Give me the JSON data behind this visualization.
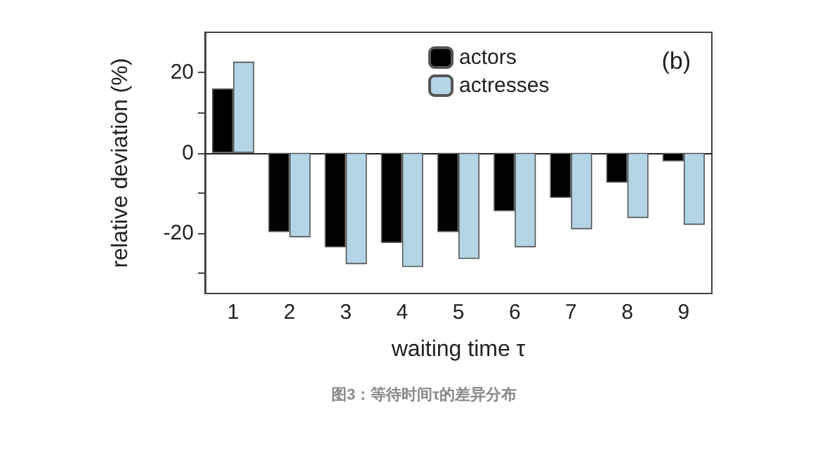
{
  "chart_data": {
    "type": "bar",
    "xlabel": "waiting time τ",
    "ylabel": "relative deviation (%)",
    "categories": [
      "1",
      "2",
      "3",
      "4",
      "5",
      "6",
      "7",
      "8",
      "9"
    ],
    "series": [
      {
        "name": "actors",
        "color": "#000000",
        "values": [
          16,
          -19.7,
          -23.5,
          -22.4,
          -19.7,
          -14.5,
          -11.2,
          -7.4,
          -2.1
        ]
      },
      {
        "name": "actresses",
        "color": "#b3d5e6",
        "values": [
          22.7,
          -21,
          -27.7,
          -28.4,
          -26.4,
          -23.5,
          -19,
          -16.2,
          -17.9
        ]
      }
    ],
    "ylim": [
      -35,
      30
    ],
    "yticks": [
      {
        "value": -30,
        "label": null
      },
      -20,
      {
        "value": -10,
        "label": null
      },
      0,
      {
        "value": 10,
        "label": null
      },
      20
    ],
    "legend": "top",
    "annotations": [
      "(b)",
      "图3：等待时间τ的差异分布"
    ]
  }
}
